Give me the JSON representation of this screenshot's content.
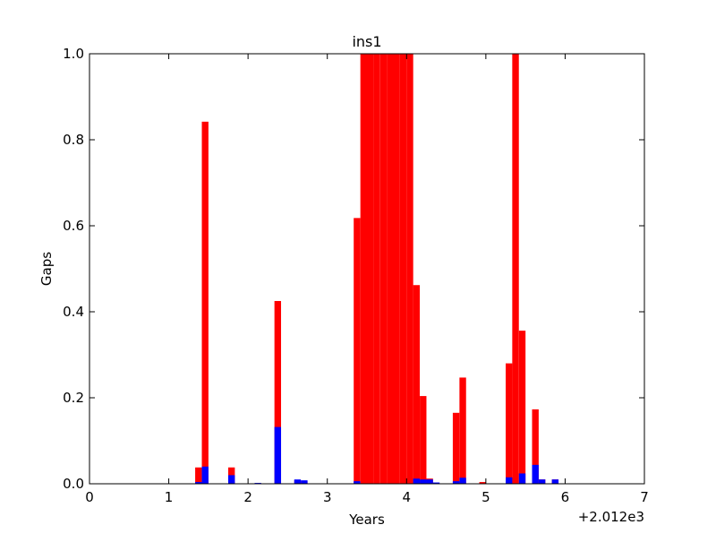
{
  "chart_data": {
    "type": "bar",
    "title": "ins1",
    "xlabel": "Years",
    "ylabel": "Gaps",
    "x_offset_label": "+2.012e3",
    "xlim": [
      0,
      7
    ],
    "ylim": [
      0,
      1.0
    ],
    "x_ticks": [
      0,
      1,
      2,
      3,
      4,
      5,
      6,
      7
    ],
    "x_tick_labels": [
      "0",
      "1",
      "2",
      "3",
      "4",
      "5",
      "6",
      "7"
    ],
    "y_ticks": [
      0,
      0.2,
      0.4,
      0.6,
      0.8,
      1.0
    ],
    "y_tick_labels": [
      "0.0",
      "0.2",
      "0.4",
      "0.6",
      "0.8",
      "1.0"
    ],
    "bin_width": 0.0833,
    "grid": false,
    "series": [
      {
        "color": "#ff0000",
        "bars": [
          {
            "x": 1.333,
            "y": 0.038
          },
          {
            "x": 1.417,
            "y": 0.842
          },
          {
            "x": 1.75,
            "y": 0.038
          },
          {
            "x": 2.333,
            "y": 0.425
          },
          {
            "x": 2.583,
            "y": 0.008
          },
          {
            "x": 2.667,
            "y": 0.006
          },
          {
            "x": 3.333,
            "y": 0.618
          },
          {
            "x": 3.417,
            "y": 1.0
          },
          {
            "x": 3.5,
            "y": 1.0
          },
          {
            "x": 3.583,
            "y": 1.0
          },
          {
            "x": 3.667,
            "y": 1.0
          },
          {
            "x": 3.75,
            "y": 1.0
          },
          {
            "x": 3.833,
            "y": 1.0
          },
          {
            "x": 3.917,
            "y": 1.0
          },
          {
            "x": 4.0,
            "y": 1.0
          },
          {
            "x": 4.083,
            "y": 0.462
          },
          {
            "x": 4.167,
            "y": 0.204
          },
          {
            "x": 4.25,
            "y": 0.012
          },
          {
            "x": 4.583,
            "y": 0.165
          },
          {
            "x": 4.667,
            "y": 0.247
          },
          {
            "x": 4.917,
            "y": 0.004
          },
          {
            "x": 5.25,
            "y": 0.28
          },
          {
            "x": 5.333,
            "y": 1.0
          },
          {
            "x": 5.417,
            "y": 0.356
          },
          {
            "x": 5.583,
            "y": 0.173
          },
          {
            "x": 5.667,
            "y": 0.01
          },
          {
            "x": 5.833,
            "y": 0.01
          }
        ]
      },
      {
        "color": "#0000ff",
        "bars": [
          {
            "x": 1.333,
            "y": 0.004
          },
          {
            "x": 1.417,
            "y": 0.04
          },
          {
            "x": 1.75,
            "y": 0.02
          },
          {
            "x": 2.083,
            "y": 0.002
          },
          {
            "x": 2.333,
            "y": 0.132
          },
          {
            "x": 2.583,
            "y": 0.01
          },
          {
            "x": 2.667,
            "y": 0.008
          },
          {
            "x": 3.333,
            "y": 0.006
          },
          {
            "x": 4.083,
            "y": 0.012
          },
          {
            "x": 4.167,
            "y": 0.01
          },
          {
            "x": 4.25,
            "y": 0.01
          },
          {
            "x": 4.333,
            "y": 0.003
          },
          {
            "x": 4.583,
            "y": 0.006
          },
          {
            "x": 4.667,
            "y": 0.014
          },
          {
            "x": 5.25,
            "y": 0.015
          },
          {
            "x": 5.417,
            "y": 0.024
          },
          {
            "x": 5.583,
            "y": 0.044
          },
          {
            "x": 5.667,
            "y": 0.01
          },
          {
            "x": 5.833,
            "y": 0.01
          }
        ]
      }
    ]
  }
}
